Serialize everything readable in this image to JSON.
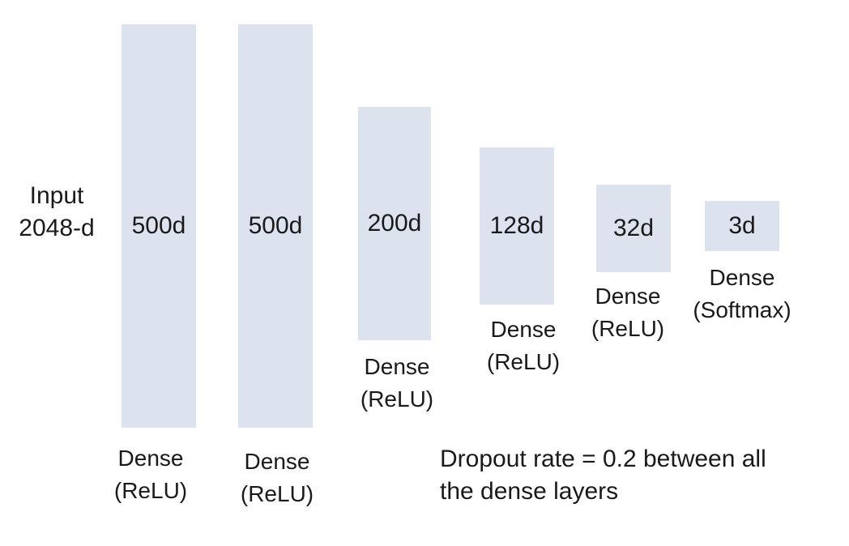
{
  "input": {
    "line1": "Input",
    "line2": "2048-d"
  },
  "layers": [
    {
      "size": "500d",
      "type": "Dense",
      "activation": "(ReLU)"
    },
    {
      "size": "500d",
      "type": "Dense",
      "activation": "(ReLU)"
    },
    {
      "size": "200d",
      "type": "Dense",
      "activation": "(ReLU)"
    },
    {
      "size": "128d",
      "type": "Dense",
      "activation": "(ReLU)"
    },
    {
      "size": "32d",
      "type": "Dense",
      "activation": "(ReLU)"
    },
    {
      "size": "3d",
      "type": "Dense",
      "activation": "(Softmax)"
    }
  ],
  "note": {
    "line1": "Dropout rate =  0.2 between all",
    "line2": "the dense layers"
  },
  "colors": {
    "layer_fill": "#dce3ef",
    "text": "#1a1a1a"
  }
}
